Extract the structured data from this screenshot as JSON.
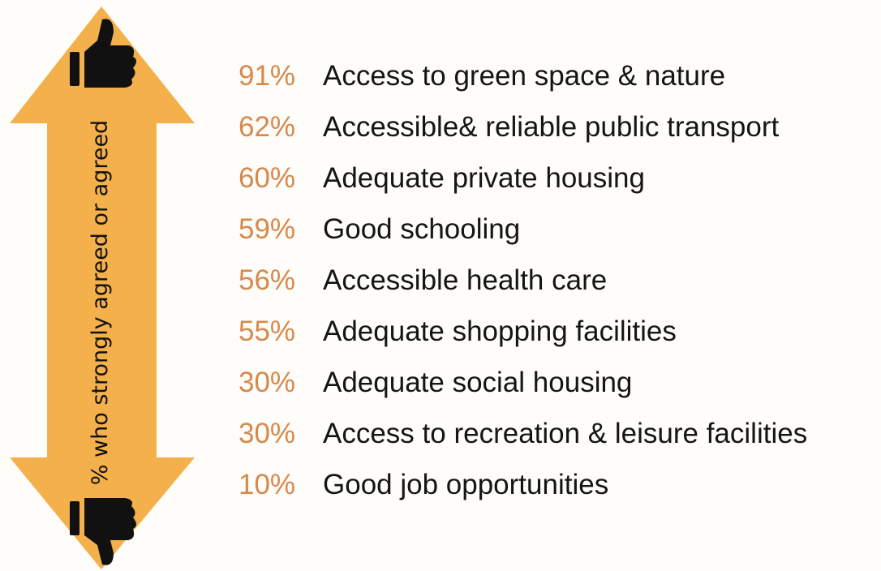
{
  "colors": {
    "arrow": "#f4b04a",
    "percent": "#d8884b",
    "text": "#151515",
    "icon": "#111111"
  },
  "icons": {
    "top": "thumbs-up-icon",
    "bottom": "thumbs-down-icon"
  },
  "chart_data": {
    "type": "table",
    "ylabel": "% who strongly agreed or agreed",
    "rows": [
      {
        "value": "91%",
        "label": "Access to green space & nature"
      },
      {
        "value": "62%",
        "label": "Accessible& reliable public transport"
      },
      {
        "value": "60%",
        "label": "Adequate private housing"
      },
      {
        "value": "59%",
        "label": "Good schooling"
      },
      {
        "value": "56%",
        "label": "Accessible health care"
      },
      {
        "value": "55%",
        "label": "Adequate shopping facilities"
      },
      {
        "value": "30%",
        "label": "Adequate social housing"
      },
      {
        "value": "30%",
        "label": "Access to recreation & leisure facilities"
      },
      {
        "value": "10%",
        "label": "Good job opportunities"
      }
    ]
  }
}
